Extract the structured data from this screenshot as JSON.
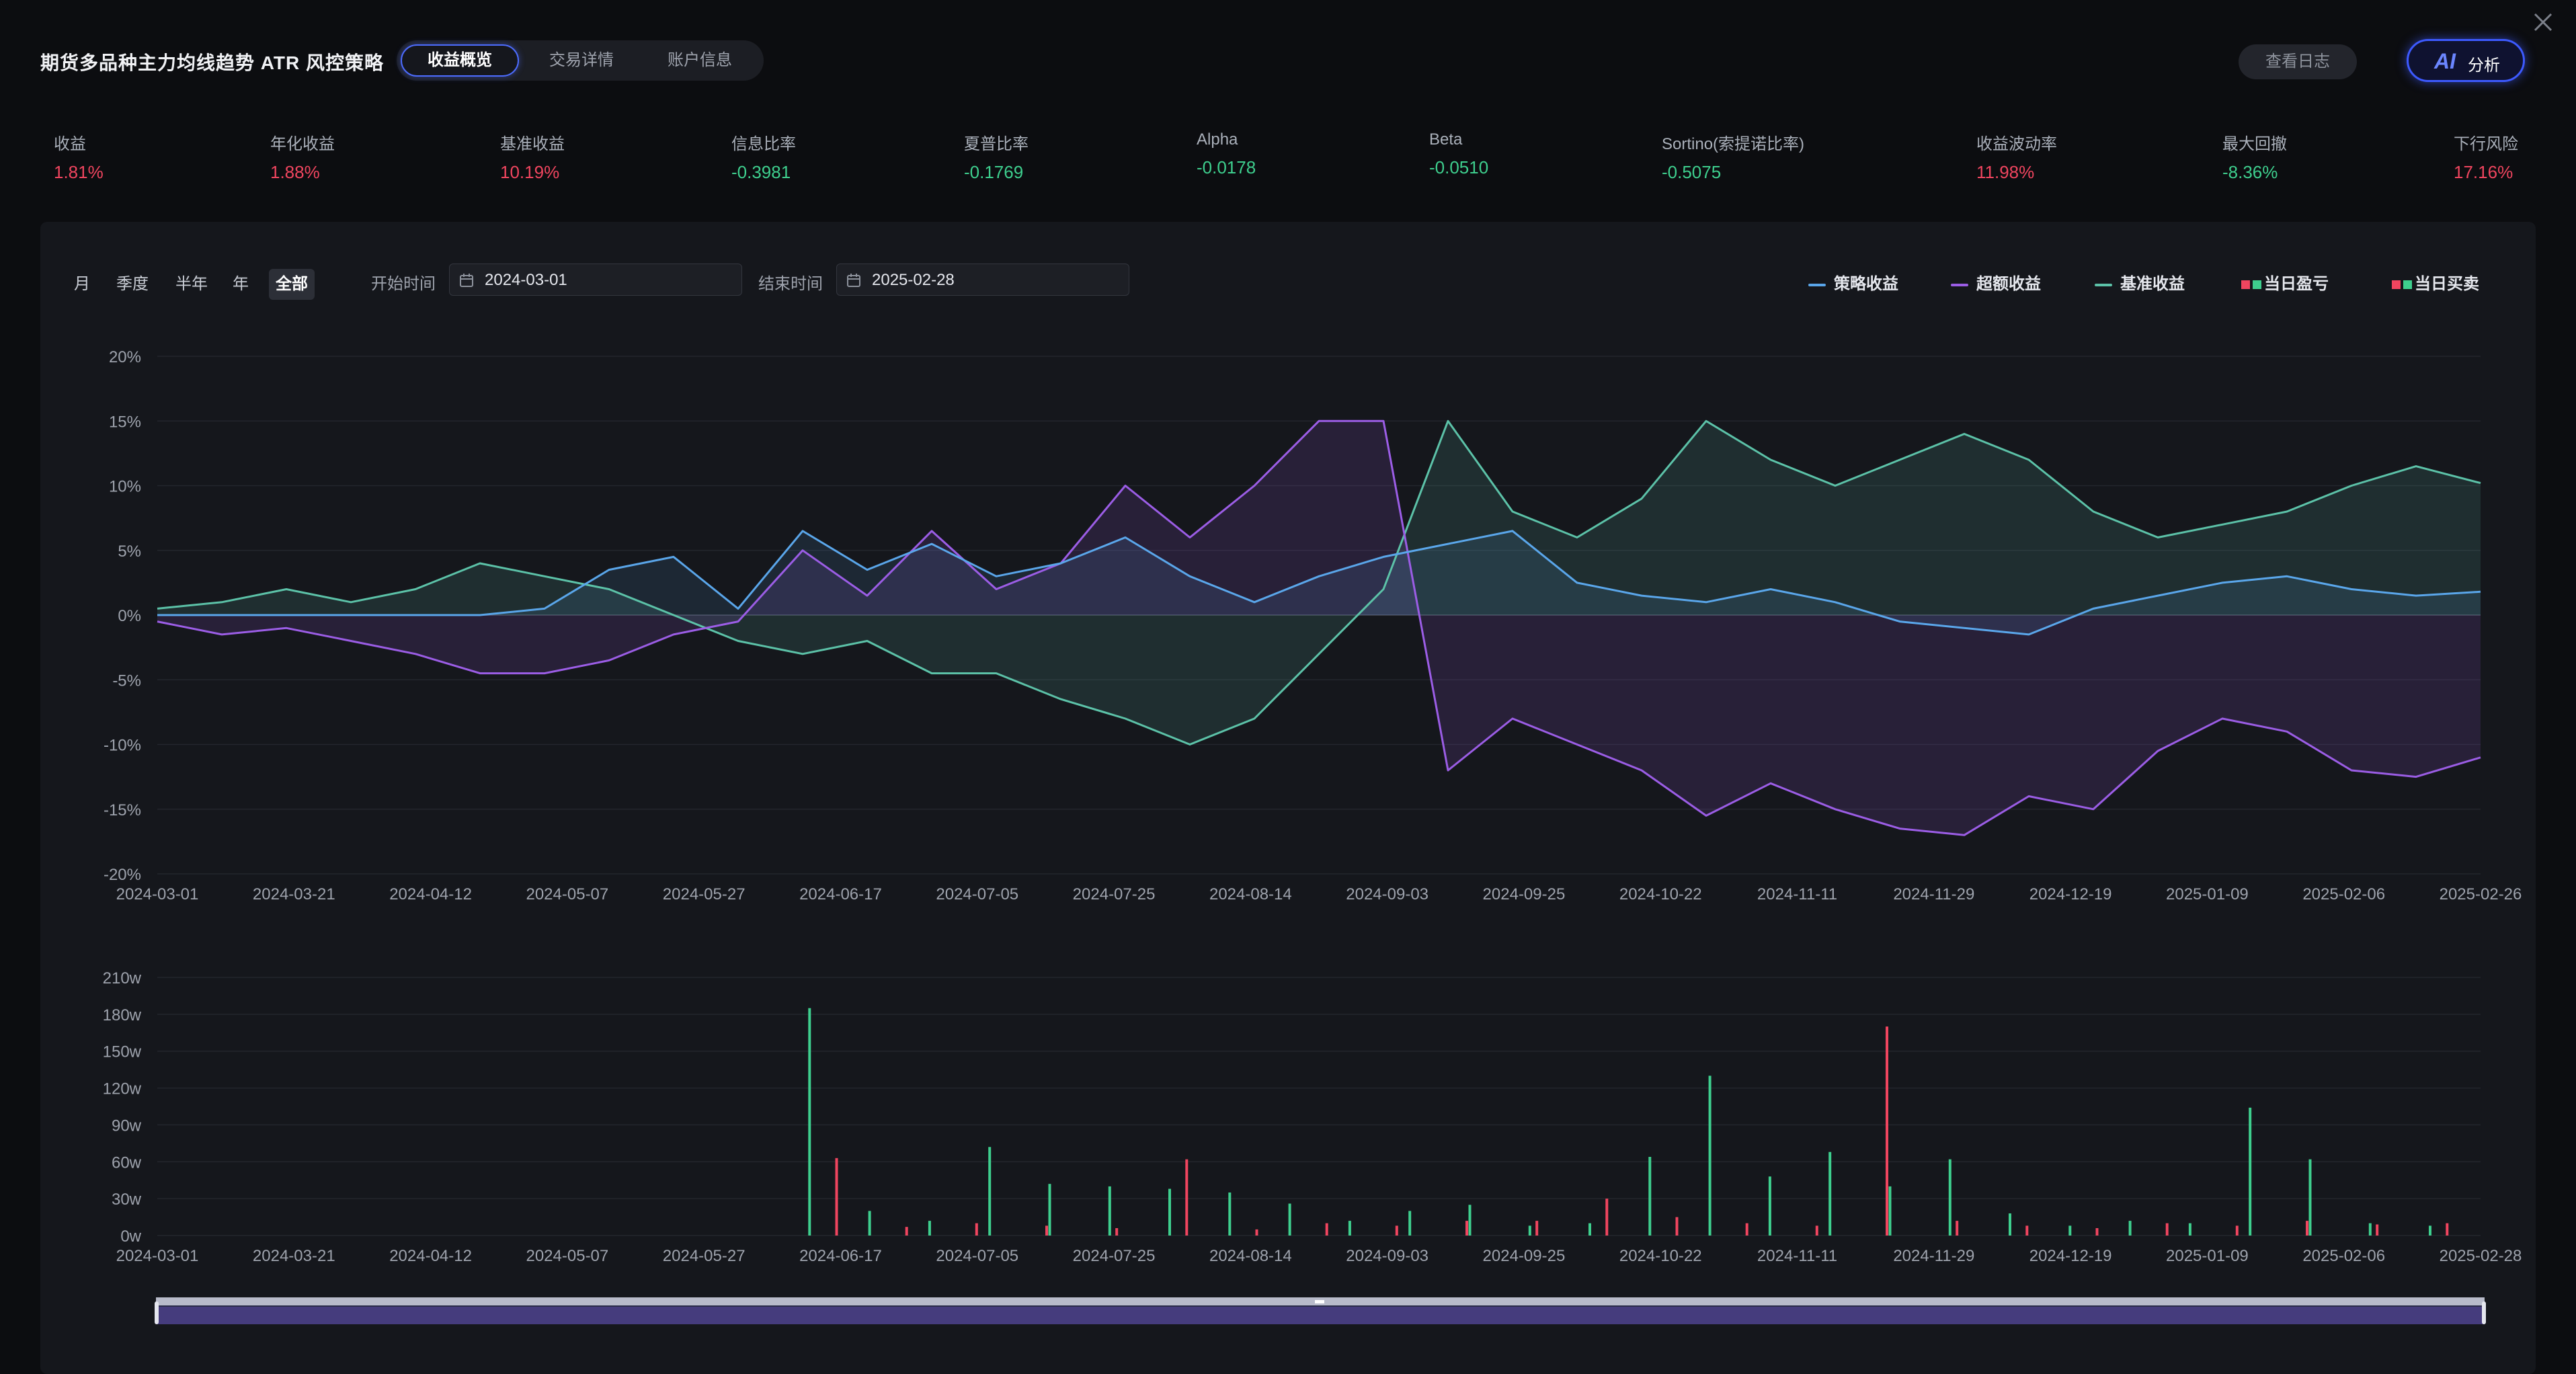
{
  "header": {
    "title": "期货多品种主力均线趋势 ATR 风控策略",
    "tabs": [
      {
        "label": "收益概览",
        "active": true
      },
      {
        "label": "交易详情",
        "active": false
      },
      {
        "label": "账户信息",
        "active": false
      }
    ],
    "log_button": "查看日志",
    "ai_button": {
      "icon": "AI",
      "label": "分析"
    }
  },
  "metrics": [
    {
      "label": "收益",
      "value": "1.81%",
      "tone": "pos"
    },
    {
      "label": "年化收益",
      "value": "1.88%",
      "tone": "pos"
    },
    {
      "label": "基准收益",
      "value": "10.19%",
      "tone": "pos"
    },
    {
      "label": "信息比率",
      "value": "-0.3981",
      "tone": "neg"
    },
    {
      "label": "夏普比率",
      "value": "-0.1769",
      "tone": "neg"
    },
    {
      "label": "Alpha",
      "value": "-0.0178",
      "tone": "neg"
    },
    {
      "label": "Beta",
      "value": "-0.0510",
      "tone": "neg"
    },
    {
      "label": "Sortino(索提诺比率)",
      "value": "-0.5075",
      "tone": "neg"
    },
    {
      "label": "收益波动率",
      "value": "11.98%",
      "tone": "pos"
    },
    {
      "label": "最大回撤",
      "value": "-8.36%",
      "tone": "neg"
    },
    {
      "label": "下行风险",
      "value": "17.16%",
      "tone": "pos"
    }
  ],
  "filters": {
    "periods": [
      "月",
      "季度",
      "半年",
      "年",
      "全部"
    ],
    "active_period": "全部",
    "start_label": "开始时间",
    "start_value": "2024-03-01",
    "end_label": "结束时间",
    "end_value": "2025-02-28"
  },
  "legend": [
    "策略收益",
    "超额收益",
    "基准收益",
    "当日盈亏",
    "当日买卖"
  ],
  "colors": {
    "strategy": "#5aa6ea",
    "excess": "#9b5de5",
    "benchmark": "#5cc2a8",
    "up": "#f0455f",
    "down": "#3ecf8e",
    "accent": "#4d6cff"
  },
  "chart_data": [
    {
      "type": "area",
      "x_ticks": [
        "2024-03-01",
        "2024-03-21",
        "2024-04-12",
        "2024-05-07",
        "2024-05-27",
        "2024-06-17",
        "2024-07-05",
        "2024-07-25",
        "2024-08-14",
        "2024-09-03",
        "2024-09-25",
        "2024-10-22",
        "2024-11-11",
        "2024-11-29",
        "2024-12-19",
        "2025-01-09",
        "2025-02-06",
        "2025-02-26"
      ],
      "y_ticks": [
        "20%",
        "15%",
        "10%",
        "5%",
        "0%",
        "-5%",
        "-10%",
        "-15%",
        "-20%"
      ],
      "ylim": [
        -20,
        20
      ],
      "grid": true,
      "legend_position": "top-right",
      "series": [
        {
          "name": "策略收益",
          "values": [
            0,
            0,
            0,
            0,
            0,
            0,
            0.5,
            3.5,
            4.5,
            0.5,
            6.5,
            3.5,
            5.5,
            3,
            4,
            6,
            3,
            1,
            3,
            4.5,
            5.5,
            6.5,
            2.5,
            1.5,
            1,
            2,
            1,
            -0.5,
            -1,
            -1.5,
            0.5,
            1.5,
            2.5,
            3,
            2,
            1.5,
            1.8
          ]
        },
        {
          "name": "超额收益",
          "values": [
            -0.5,
            -1.5,
            -1,
            -2,
            -3,
            -4.5,
            -4.5,
            -3.5,
            -1.5,
            -0.5,
            5,
            1.5,
            6.5,
            2,
            4,
            10,
            6,
            10,
            15,
            15,
            -12,
            -8,
            -10,
            -12,
            -15.5,
            -13,
            -15,
            -16.5,
            -17,
            -14,
            -15,
            -10.5,
            -8,
            -9,
            -12,
            -12.5,
            -11
          ]
        },
        {
          "name": "基准收益",
          "values": [
            0.5,
            1,
            2,
            1,
            2,
            4,
            3,
            2,
            0,
            -2,
            -3,
            -2,
            -4.5,
            -4.5,
            -6.5,
            -8,
            -10,
            -8,
            -3,
            2,
            15,
            8,
            6,
            9,
            15,
            12,
            10,
            12,
            14,
            12,
            8,
            6,
            7,
            8,
            10,
            11.5,
            10.2
          ]
        }
      ]
    },
    {
      "type": "bar",
      "x_ticks": [
        "2024-03-01",
        "2024-03-21",
        "2024-04-12",
        "2024-05-07",
        "2024-05-27",
        "2024-06-17",
        "2024-07-05",
        "2024-07-25",
        "2024-08-14",
        "2024-09-03",
        "2024-09-25",
        "2024-10-22",
        "2024-11-11",
        "2024-11-29",
        "2024-12-19",
        "2025-01-09",
        "2025-02-06",
        "2025-02-28"
      ],
      "y_ticks": [
        "210w",
        "180w",
        "150w",
        "120w",
        "90w",
        "60w",
        "30w",
        "0w"
      ],
      "ylim": [
        0,
        210
      ],
      "series": [
        {
          "name": "当日盈亏",
          "values": [
            63,
            7,
            10,
            8,
            6,
            62,
            5,
            10,
            8,
            12,
            12,
            30,
            15,
            10,
            8,
            170,
            12,
            8,
            6,
            10,
            8,
            12,
            9,
            10
          ]
        },
        {
          "name": "当日买卖",
          "values": [
            185,
            20,
            12,
            72,
            42,
            40,
            38,
            35,
            26,
            12,
            20,
            25,
            8,
            10,
            64,
            130,
            48,
            68,
            40,
            62,
            18,
            8,
            12,
            10,
            104,
            62,
            10,
            8
          ]
        }
      ]
    }
  ]
}
